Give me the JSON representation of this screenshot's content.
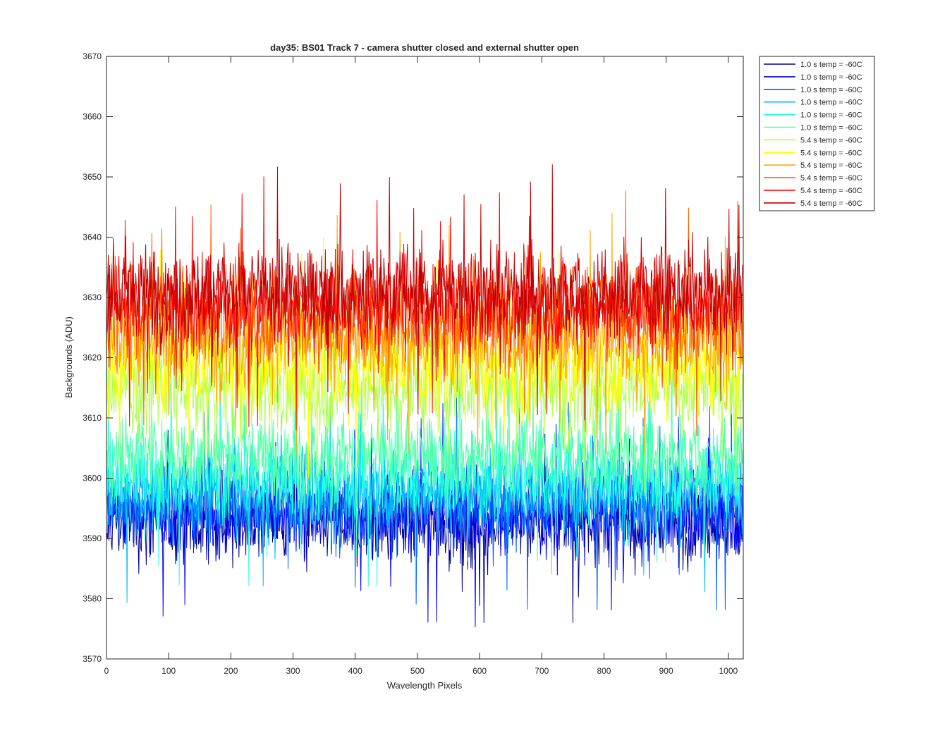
{
  "chart_data": {
    "type": "line",
    "title": "day35: BS01  Track 7 - camera shutter closed and external shutter open",
    "xlabel": "Wavelength Pixels",
    "ylabel": "Backgrounds (ADU)",
    "xlim": [
      0,
      1024
    ],
    "ylim": [
      3570,
      3670
    ],
    "xticks": [
      "0",
      "100",
      "200",
      "300",
      "400",
      "500",
      "600",
      "700",
      "800",
      "900",
      "1000"
    ],
    "yticks": [
      "3570",
      "3580",
      "3590",
      "3600",
      "3610",
      "3620",
      "3630",
      "3640",
      "3650",
      "3660",
      "3670"
    ],
    "grid": false,
    "legend_position": "outside-top-right",
    "n_points_per_series": 1024,
    "series": [
      {
        "name": "1.0 s temp = -60C",
        "color": "#00008F",
        "mean": 3593,
        "spread": 3.5,
        "min": 3576,
        "max": 3612
      },
      {
        "name": "1.0 s temp = -60C",
        "color": "#0000FF",
        "mean": 3594,
        "spread": 3.5,
        "min": 3571,
        "max": 3613
      },
      {
        "name": "1.0 s temp = -60C",
        "color": "#0060FF",
        "mean": 3596,
        "spread": 3.5,
        "min": 3578,
        "max": 3615
      },
      {
        "name": "1.0 s temp = -60C",
        "color": "#00BFFF",
        "mean": 3598,
        "spread": 3.5,
        "min": 3579,
        "max": 3617
      },
      {
        "name": "1.0 s temp = -60C",
        "color": "#20FFDF",
        "mean": 3600,
        "spread": 3.5,
        "min": 3579,
        "max": 3619
      },
      {
        "name": "1.0 s temp = -60C",
        "color": "#50FFA8",
        "mean": 3604,
        "spread": 3.5,
        "min": 3580,
        "max": 3624
      },
      {
        "name": "5.4 s temp = -60C",
        "color": "#AFFF50",
        "mean": 3615,
        "spread": 4.0,
        "min": 3597,
        "max": 3636
      },
      {
        "name": "5.4 s temp = -60C",
        "color": "#FFFF00",
        "mean": 3619,
        "spread": 4.0,
        "min": 3600,
        "max": 3644
      },
      {
        "name": "5.4 s temp = -60C",
        "color": "#FFA500",
        "mean": 3623,
        "spread": 4.0,
        "min": 3604,
        "max": 3659
      },
      {
        "name": "5.4 s temp = -60C",
        "color": "#FF6000",
        "mean": 3627,
        "spread": 4.0,
        "min": 3607,
        "max": 3654
      },
      {
        "name": "5.4 s temp = -60C",
        "color": "#FF0000",
        "mean": 3629,
        "spread": 4.0,
        "min": 3608,
        "max": 3660
      },
      {
        "name": "5.4 s temp = -60C",
        "color": "#BF0000",
        "mean": 3631,
        "spread": 4.0,
        "min": 3603,
        "max": 3661
      }
    ]
  }
}
